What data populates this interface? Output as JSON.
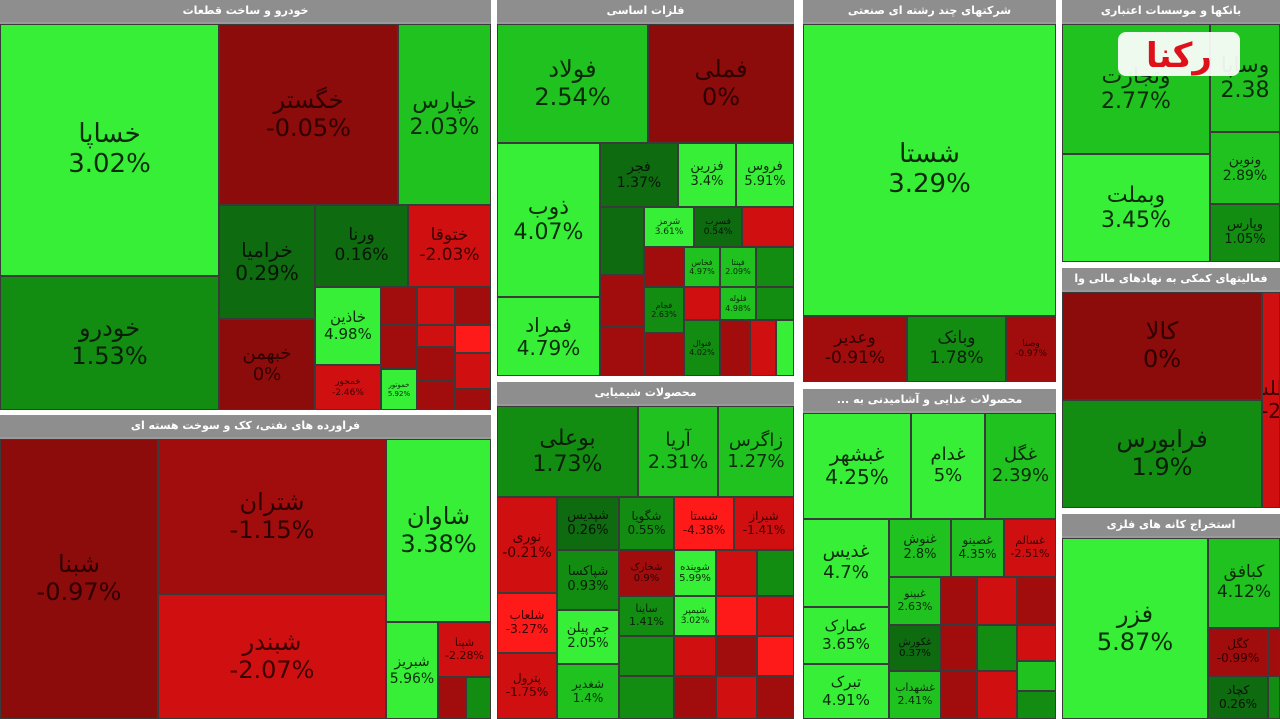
{
  "sectors": [
    {
      "title": "خودرو و ساخت قطعات",
      "tiles": [
        {
          "symbol": "خساپا",
          "change": "3.02%"
        },
        {
          "symbol": "خودرو",
          "change": "1.53%"
        },
        {
          "symbol": "خگستر",
          "change": "-0.05%"
        },
        {
          "symbol": "خپارس",
          "change": "2.03%"
        },
        {
          "symbol": "خرامیا",
          "change": "0.29%"
        },
        {
          "symbol": "ورنا",
          "change": "0.16%"
        },
        {
          "symbol": "ختوقا",
          "change": "-2.03%"
        },
        {
          "symbol": "خبهمن",
          "change": "0%"
        },
        {
          "symbol": "خاذین",
          "change": "4.98%"
        },
        {
          "symbol": "خمحور",
          "change": "-2.46%"
        },
        {
          "symbol": "خموتور",
          "change": "5.92%"
        }
      ]
    },
    {
      "title": "فلزات اساسی",
      "tiles": [
        {
          "symbol": "فولاد",
          "change": "2.54%"
        },
        {
          "symbol": "فملی",
          "change": "0%"
        },
        {
          "symbol": "ذوب",
          "change": "4.07%"
        },
        {
          "symbol": "فمراد",
          "change": "4.79%"
        },
        {
          "symbol": "فجر",
          "change": "1.37%"
        },
        {
          "symbol": "فزرین",
          "change": "3.4%"
        },
        {
          "symbol": "فروس",
          "change": "5.91%"
        },
        {
          "symbol": "شرمز",
          "change": "3.61%"
        },
        {
          "symbol": "فسرب",
          "change": "0.54%"
        },
        {
          "symbol": "فخاس",
          "change": "4.97%"
        },
        {
          "symbol": "فپنتا",
          "change": "2.09%"
        },
        {
          "symbol": "فلوله",
          "change": "4.98%"
        },
        {
          "symbol": "فجام",
          "change": "2.63%"
        },
        {
          "symbol": "فنوال",
          "change": "4.02%"
        }
      ]
    },
    {
      "title": "شرکتهای چند رشته ای صنعتی",
      "tiles": [
        {
          "symbol": "شستا",
          "change": "3.29%"
        },
        {
          "symbol": "وعدیر",
          "change": "-0.91%"
        },
        {
          "symbol": "وبانک",
          "change": "1.78%"
        },
        {
          "symbol": "وصنا",
          "change": "-0.97%"
        }
      ]
    },
    {
      "title": "بانکها و موسسات اعتباری",
      "tiles": [
        {
          "symbol": "وتجارت",
          "change": "2.77%"
        },
        {
          "symbol": "وساپا",
          "change": "2.38"
        },
        {
          "symbol": "وبملت",
          "change": "3.45%"
        },
        {
          "symbol": "ونوین",
          "change": "2.89%"
        },
        {
          "symbol": "وپارس",
          "change": "1.05%"
        }
      ]
    },
    {
      "title": "فعالیتهای کمکی به نهادهای مالی وا",
      "tiles": [
        {
          "symbol": "کالا",
          "change": "0%"
        },
        {
          "symbol": "فرابورس",
          "change": "1.9%"
        },
        {
          "symbol": "اطلس",
          "change": "-2"
        }
      ]
    },
    {
      "title": "فراورده های نفتی، کک و سوخت هسته ای",
      "tiles": [
        {
          "symbol": "شبنا",
          "change": "-0.97%"
        },
        {
          "symbol": "شتران",
          "change": "-1.15%"
        },
        {
          "symbol": "شاوان",
          "change": "3.38%"
        },
        {
          "symbol": "شبندر",
          "change": "-2.07%"
        },
        {
          "symbol": "شبریز",
          "change": "5.96%"
        },
        {
          "symbol": "شپنا",
          "change": "-2.28%"
        }
      ]
    },
    {
      "title": "محصولات شیمیایی",
      "tiles": [
        {
          "symbol": "بوعلی",
          "change": "1.73%"
        },
        {
          "symbol": "آریا",
          "change": "2.31%"
        },
        {
          "symbol": "زاگرس",
          "change": "1.27%"
        },
        {
          "symbol": "نوری",
          "change": "-0.21%"
        },
        {
          "symbol": "شپدیس",
          "change": "0.26%"
        },
        {
          "symbol": "شگویا",
          "change": "0.55%"
        },
        {
          "symbol": "شستا",
          "change": "-4.38%"
        },
        {
          "symbol": "شیراز",
          "change": "-1.41%"
        },
        {
          "symbol": "شپاکسا",
          "change": "0.93%"
        },
        {
          "symbol": "شخارک",
          "change": "0.9%"
        },
        {
          "symbol": "شوینده",
          "change": "5.99%"
        },
        {
          "symbol": "شلعاب",
          "change": "-3.27%"
        },
        {
          "symbol": "جم پیلن",
          "change": "2.05%"
        },
        {
          "symbol": "ساینا",
          "change": "1.41%"
        },
        {
          "symbol": "شیمپر",
          "change": "3.02%"
        },
        {
          "symbol": "پترول",
          "change": "-1.75%"
        },
        {
          "symbol": "شغدیر",
          "change": "1.4%"
        }
      ]
    },
    {
      "title": "محصولات غذایی و آشامیدنی به ...",
      "tiles": [
        {
          "symbol": "غبشهر",
          "change": "4.25%"
        },
        {
          "symbol": "غدام",
          "change": "5%"
        },
        {
          "symbol": "غگل",
          "change": "2.39%"
        },
        {
          "symbol": "غدیس",
          "change": "4.7%"
        },
        {
          "symbol": "غنوش",
          "change": "2.8%"
        },
        {
          "symbol": "غصینو",
          "change": "4.35%"
        },
        {
          "symbol": "غسالم",
          "change": "-2.51%"
        },
        {
          "symbol": "عمارک",
          "change": "3.65%"
        },
        {
          "symbol": "غبینو",
          "change": "2.63%"
        },
        {
          "symbol": "تبرک",
          "change": "4.91%"
        },
        {
          "symbol": "غشهداب",
          "change": "2.41%"
        },
        {
          "symbol": "غکورش",
          "change": "0.37%"
        }
      ]
    },
    {
      "title": "استخراج کانه های فلزی",
      "tiles": [
        {
          "symbol": "فزر",
          "change": "5.87%"
        },
        {
          "symbol": "کبافق",
          "change": "4.12%"
        },
        {
          "symbol": "کگل",
          "change": "-0.99%"
        },
        {
          "symbol": "کچاد",
          "change": "0.26%"
        }
      ]
    }
  ],
  "logo": {
    "text": "رکنا",
    "color_primary": "#e0101a",
    "color_secondary": "#ffffff"
  }
}
